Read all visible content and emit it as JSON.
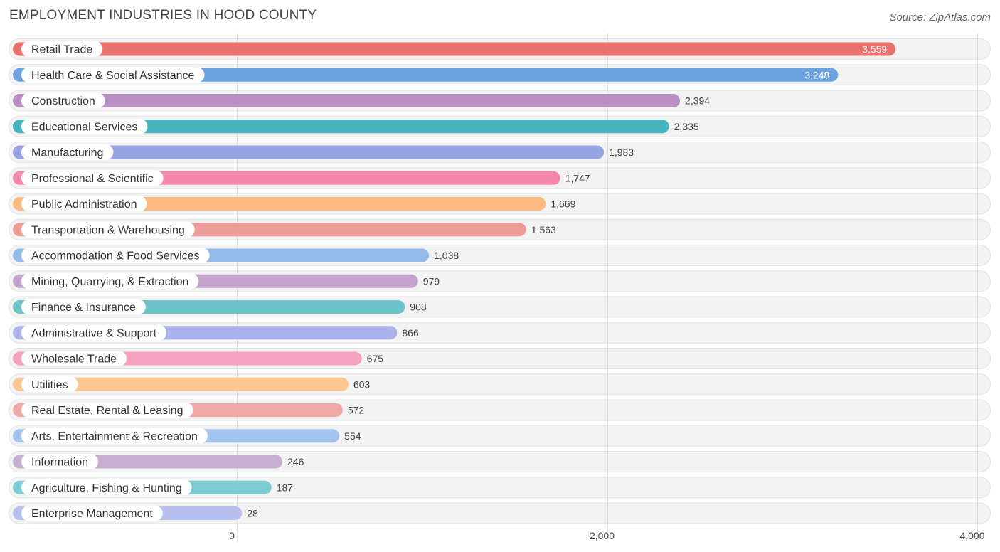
{
  "header": {
    "title": "EMPLOYMENT INDUSTRIES IN HOOD COUNTY",
    "source": "Source: ZipAtlas.com"
  },
  "chart_data": {
    "type": "bar",
    "orientation": "horizontal",
    "title": "EMPLOYMENT INDUSTRIES IN HOOD COUNTY",
    "xlabel": "",
    "ylabel": "",
    "xlim": [
      0,
      4000
    ],
    "ticks": [
      {
        "value": 0,
        "label": "0"
      },
      {
        "value": 2000,
        "label": "2,000"
      },
      {
        "value": 4000,
        "label": "4,000"
      }
    ],
    "grid": true,
    "categories": [
      "Retail Trade",
      "Health Care & Social Assistance",
      "Construction",
      "Educational Services",
      "Manufacturing",
      "Professional & Scientific",
      "Public Administration",
      "Transportation & Warehousing",
      "Accommodation & Food Services",
      "Mining, Quarrying, & Extraction",
      "Finance & Insurance",
      "Administrative & Support",
      "Wholesale Trade",
      "Utilities",
      "Real Estate, Rental & Leasing",
      "Arts, Entertainment & Recreation",
      "Information",
      "Agriculture, Fishing & Hunting",
      "Enterprise Management"
    ],
    "values": [
      3559,
      3248,
      2394,
      2335,
      1983,
      1747,
      1669,
      1563,
      1038,
      979,
      908,
      866,
      675,
      603,
      572,
      554,
      246,
      187,
      28
    ],
    "value_labels": [
      "3,559",
      "3,248",
      "2,394",
      "2,335",
      "1,983",
      "1,747",
      "1,669",
      "1,563",
      "1,038",
      "979",
      "908",
      "866",
      "675",
      "603",
      "572",
      "554",
      "246",
      "187",
      "28"
    ],
    "colors": [
      "#e8726e",
      "#6aa3e0",
      "#b98fc4",
      "#46b5c0",
      "#98a3e3",
      "#f586ac",
      "#fbbb80",
      "#ed9b96",
      "#93bbe8",
      "#c3a2cc",
      "#6dc3c9",
      "#aab3ea",
      "#f6a0bf",
      "#fcc690",
      "#f0a8a4",
      "#a2c3ec",
      "#c7afd2",
      "#7dcbd0",
      "#b7bfef"
    ]
  }
}
